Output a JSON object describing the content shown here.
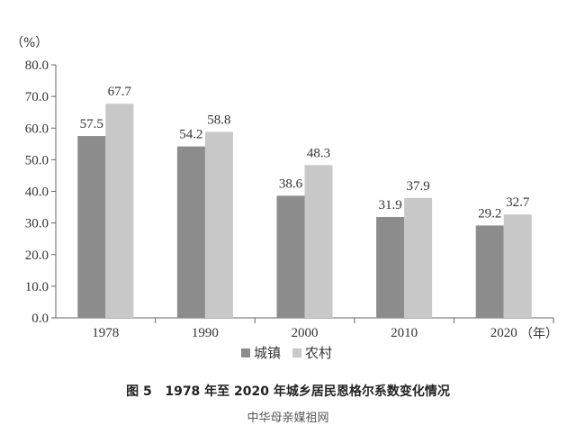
{
  "chart_data": {
    "type": "bar",
    "title": "图 5   1978 年至 2020 年城乡居民恩格尔系数变化情况",
    "ylabel": "（%）",
    "xunit": "（年）",
    "categories": [
      "1978",
      "1990",
      "2000",
      "2010",
      "2020"
    ],
    "series": [
      {
        "name": "城镇",
        "color": "#8c8c8c",
        "values": [
          57.5,
          54.2,
          38.6,
          31.9,
          29.2
        ]
      },
      {
        "name": "农村",
        "color": "#c8c8c8",
        "values": [
          67.7,
          58.8,
          48.3,
          37.9,
          32.7
        ]
      }
    ],
    "ylim": [
      0,
      80
    ],
    "yticks": [
      "0.0",
      "10.0",
      "20.0",
      "30.0",
      "40.0",
      "50.0",
      "60.0",
      "70.0",
      "80.0"
    ],
    "grid": false,
    "legend": "bottom-center"
  },
  "watermark": "中华母亲媒祖网"
}
